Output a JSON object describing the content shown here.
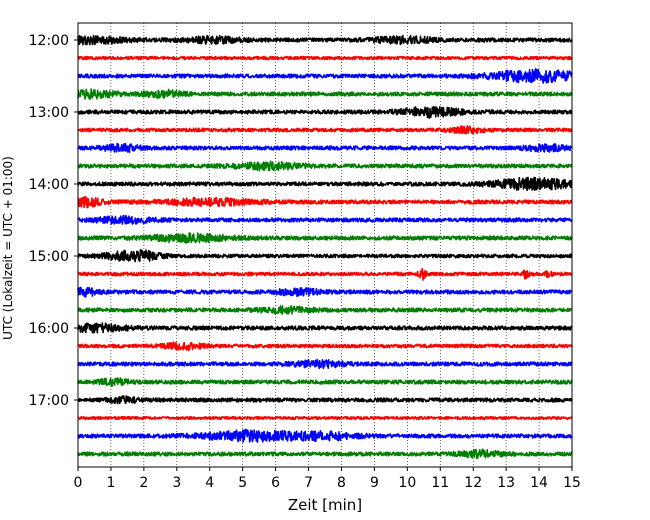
{
  "chart_data": {
    "type": "line",
    "title": "",
    "xlabel": "Zeit  [min]",
    "ylabel": "UTC (Lokalzeit = UTC + 01:00)",
    "xlim": [
      0,
      15
    ],
    "x_ticks": [
      "0",
      "1",
      "2",
      "3",
      "4",
      "5",
      "6",
      "7",
      "8",
      "9",
      "10",
      "11",
      "12",
      "13",
      "14",
      "15"
    ],
    "y_tick_labels": [
      "12:00",
      "13:00",
      "14:00",
      "15:00",
      "16:00",
      "17:00"
    ],
    "grid": "vertical-dotted",
    "traces_per_hour": 4,
    "trace_colors": [
      "#000000",
      "#ff0000",
      "#0000ff",
      "#008000"
    ],
    "traces": [
      {
        "start": "12:00",
        "color": "#000000",
        "noise": 1.0,
        "events": [
          [
            0.3,
            1.5,
            1.2
          ],
          [
            4.1,
            1.4,
            0.8
          ],
          [
            9.9,
            1.4,
            0.9
          ]
        ]
      },
      {
        "start": "12:15",
        "color": "#ff0000",
        "noise": 0.8,
        "events": []
      },
      {
        "start": "12:30",
        "color": "#0000ff",
        "noise": 1.0,
        "events": [
          [
            13.9,
            2.8,
            1.4
          ]
        ]
      },
      {
        "start": "12:45",
        "color": "#008000",
        "noise": 1.0,
        "events": [
          [
            0.3,
            1.8,
            0.8
          ],
          [
            2.6,
            1.5,
            0.6
          ]
        ]
      },
      {
        "start": "13:00",
        "color": "#000000",
        "noise": 1.0,
        "events": [
          [
            10.7,
            2.2,
            0.9
          ]
        ]
      },
      {
        "start": "13:15",
        "color": "#ff0000",
        "noise": 0.9,
        "events": [
          [
            11.8,
            1.4,
            0.5
          ]
        ]
      },
      {
        "start": "13:30",
        "color": "#0000ff",
        "noise": 1.0,
        "events": [
          [
            1.3,
            1.5,
            0.6
          ],
          [
            14.2,
            1.4,
            0.6
          ]
        ]
      },
      {
        "start": "13:45",
        "color": "#008000",
        "noise": 1.0,
        "events": [
          [
            5.8,
            1.6,
            1.0
          ]
        ]
      },
      {
        "start": "14:00",
        "color": "#000000",
        "noise": 1.0,
        "events": [
          [
            13.8,
            2.6,
            1.2
          ]
        ]
      },
      {
        "start": "14:15",
        "color": "#ff0000",
        "noise": 1.0,
        "events": [
          [
            0.2,
            2.2,
            0.5
          ],
          [
            4.0,
            1.4,
            1.5
          ]
        ]
      },
      {
        "start": "14:30",
        "color": "#0000ff",
        "noise": 1.0,
        "events": [
          [
            1.4,
            1.5,
            0.8
          ]
        ]
      },
      {
        "start": "14:45",
        "color": "#008000",
        "noise": 1.0,
        "events": [
          [
            3.4,
            1.7,
            1.2
          ]
        ]
      },
      {
        "start": "15:00",
        "color": "#000000",
        "noise": 0.9,
        "events": [
          [
            1.4,
            2.0,
            0.7
          ],
          [
            2.1,
            1.6,
            0.5
          ]
        ]
      },
      {
        "start": "15:15",
        "color": "#ff0000",
        "noise": 0.9,
        "events": [
          [
            10.45,
            3.2,
            0.1
          ],
          [
            13.6,
            2.0,
            0.1
          ],
          [
            14.3,
            1.8,
            0.1
          ]
        ]
      },
      {
        "start": "15:30",
        "color": "#0000ff",
        "noise": 1.0,
        "events": [
          [
            0.2,
            1.8,
            0.4
          ],
          [
            6.7,
            1.4,
            0.7
          ]
        ]
      },
      {
        "start": "15:45",
        "color": "#008000",
        "noise": 1.0,
        "events": [
          [
            6.3,
            1.3,
            0.8
          ]
        ]
      },
      {
        "start": "16:00",
        "color": "#000000",
        "noise": 1.0,
        "events": [
          [
            0.5,
            1.8,
            0.9
          ]
        ]
      },
      {
        "start": "16:15",
        "color": "#ff0000",
        "noise": 0.9,
        "events": [
          [
            3.2,
            1.5,
            0.6
          ]
        ]
      },
      {
        "start": "16:30",
        "color": "#0000ff",
        "noise": 1.0,
        "events": [
          [
            7.3,
            1.4,
            0.8
          ]
        ]
      },
      {
        "start": "16:45",
        "color": "#008000",
        "noise": 1.0,
        "events": [
          [
            1.1,
            1.5,
            0.4
          ]
        ]
      },
      {
        "start": "17:00",
        "color": "#000000",
        "noise": 1.0,
        "events": [
          [
            1.4,
            1.5,
            0.4
          ]
        ]
      },
      {
        "start": "17:15",
        "color": "#ff0000",
        "noise": 0.7,
        "events": []
      },
      {
        "start": "17:30",
        "color": "#0000ff",
        "noise": 1.0,
        "events": [
          [
            5.2,
            2.5,
            1.4
          ],
          [
            7.5,
            1.6,
            1.0
          ]
        ]
      },
      {
        "start": "17:45",
        "color": "#008000",
        "noise": 1.0,
        "events": [
          [
            12.2,
            1.5,
            0.6
          ]
        ]
      }
    ]
  }
}
